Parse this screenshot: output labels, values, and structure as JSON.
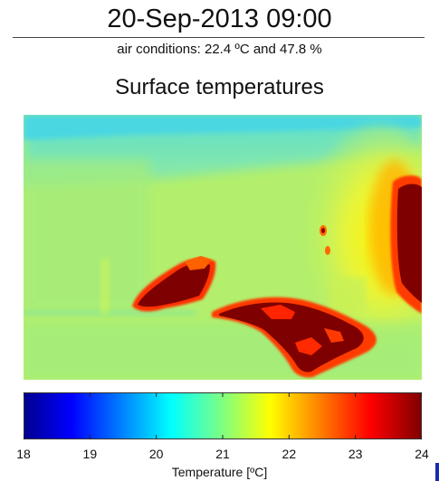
{
  "title": "20-Sep-2013 09:00",
  "subtitle": "air conditions: 22.4 ºC and 47.8 %",
  "heading": "Surface temperatures",
  "chart_data": {
    "type": "heatmap",
    "colormap": "jet",
    "clim": [
      18,
      24
    ],
    "colorbar": {
      "orientation": "horizontal",
      "ticks": [
        "18",
        "19",
        "20",
        "21",
        "22",
        "23",
        "24"
      ],
      "label": "Temperature [ºC]"
    }
  },
  "colors": {
    "background_field": "#b4f06a",
    "hot": "#7a0000",
    "cool": "#5fe3cf"
  }
}
